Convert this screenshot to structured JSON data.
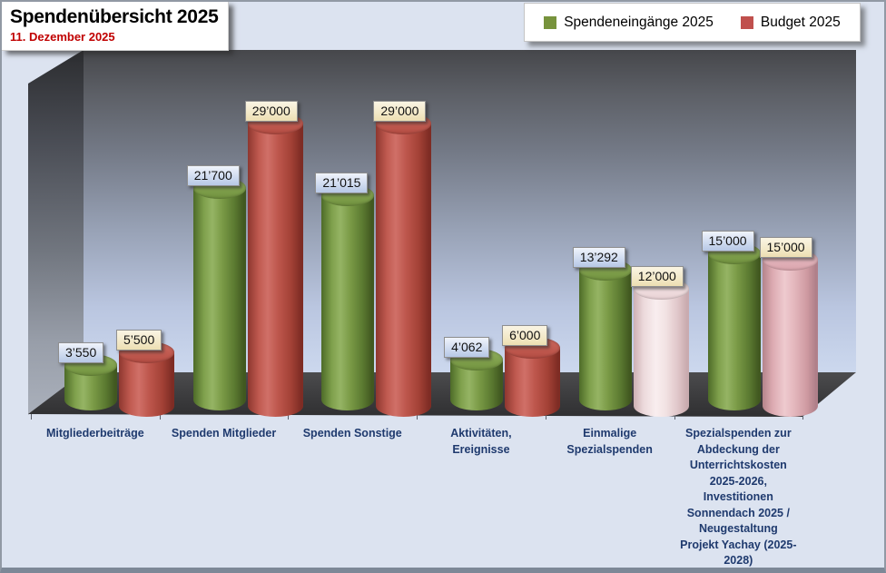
{
  "title": {
    "text": "Spendenübersicht 2025",
    "date": "11. Dezember 2025"
  },
  "legend": [
    {
      "label": "Spendeneingänge 2025",
      "color": "#77933C"
    },
    {
      "label": "Budget 2025",
      "color": "#C0504D"
    }
  ],
  "colors": {
    "series1_green": "#77933C",
    "series2_red": "#C0504D",
    "series2_pink_light": "#F2DCDB",
    "series2_pink_rose": "#E6B9B8",
    "category_text": "#1F3A6E",
    "date_text": "#C00000",
    "background": "#DCE3F0"
  },
  "chart_data": {
    "type": "bar",
    "style": "3d-cylinder",
    "title": "Spendenübersicht 2025",
    "subtitle": "11. Dezember 2025",
    "legend_position": "top-right",
    "gridlines": false,
    "value_axis": {
      "min": 0,
      "max": 29000,
      "visible": false
    },
    "categories": [
      "Mitgliederbeiträge",
      "Spenden Mitglieder",
      "Spenden Sonstige",
      "Aktivitäten, Ereignisse",
      "Einmalige Spezialspenden",
      "Spezialspenden zur Abdeckung der Unterrichtskosten 2025-2026, Investitionen Sonnendach 2025 / Neugestaltung Projekt Yachay (2025-2028)"
    ],
    "categories_display": [
      "Mitgliederbeiträge",
      "Spenden Mitglieder",
      "Spenden Sonstige",
      "Aktivitäten,\nEreignisse",
      "Einmalige\nSpezialspenden",
      "Spezialspenden zur\nAbdeckung der\nUnterrichtskosten\n2025-2026,\nInvestitionen\nSonnendach 2025 /\nNeugestaltung\nProjekt Yachay (2025-\n2028)"
    ],
    "series": [
      {
        "name": "Spendeneingänge 2025",
        "values": [
          3550,
          21700,
          21015,
          4062,
          13292,
          15000
        ],
        "labels": [
          "3’550",
          "21’700",
          "21’015",
          "4’062",
          "13’292",
          "15’000"
        ],
        "point_styles": [
          "green",
          "green",
          "green",
          "green",
          "green",
          "green"
        ]
      },
      {
        "name": "Budget 2025",
        "values": [
          5500,
          29000,
          29000,
          6000,
          12000,
          15000
        ],
        "labels": [
          "5’500",
          "29’000",
          "29’000",
          "6’000",
          "12’000",
          "15’000"
        ],
        "point_styles": [
          "red",
          "red",
          "red",
          "red",
          "pink-light",
          "pink-rose"
        ]
      }
    ]
  }
}
